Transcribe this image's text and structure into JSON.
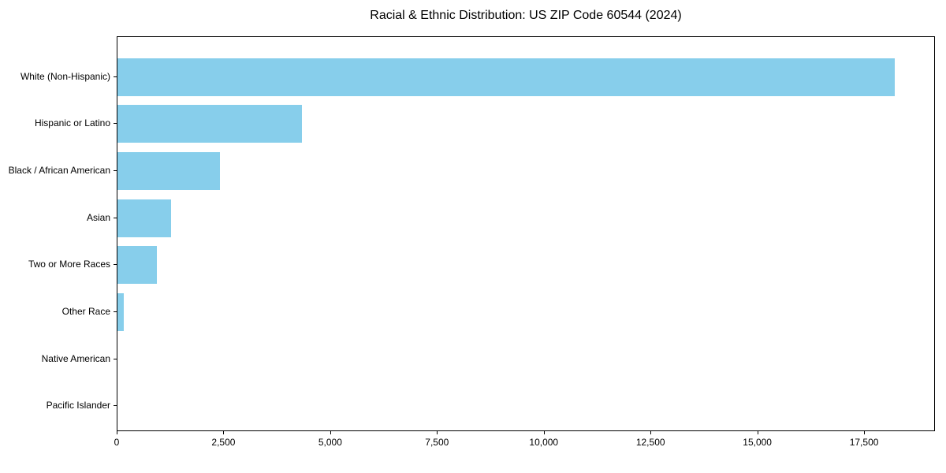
{
  "chart_data": {
    "type": "bar",
    "orientation": "horizontal",
    "title": "Racial & Ethnic Distribution: US ZIP Code 60544 (2024)",
    "categories": [
      "White (Non-Hispanic)",
      "Hispanic or Latino",
      "Black / African American",
      "Asian",
      "Two or More Races",
      "Other Race",
      "Native American",
      "Pacific Islander"
    ],
    "values": [
      18230,
      4330,
      2410,
      1250,
      930,
      155,
      0,
      0
    ],
    "xlabel": "",
    "ylabel": "",
    "xlim": [
      0,
      19160
    ],
    "xticks": [
      0,
      2500,
      5000,
      7500,
      10000,
      12500,
      15000,
      17500
    ],
    "xtick_labels": [
      "0",
      "2,500",
      "5,000",
      "7,500",
      "10,000",
      "12,500",
      "15,000",
      "17,500"
    ],
    "grid": false,
    "legend": null,
    "bar_color": "#87CEEB",
    "background_color": "#FFFFFF",
    "text_color": "#000000",
    "spine_color": "#000000"
  }
}
